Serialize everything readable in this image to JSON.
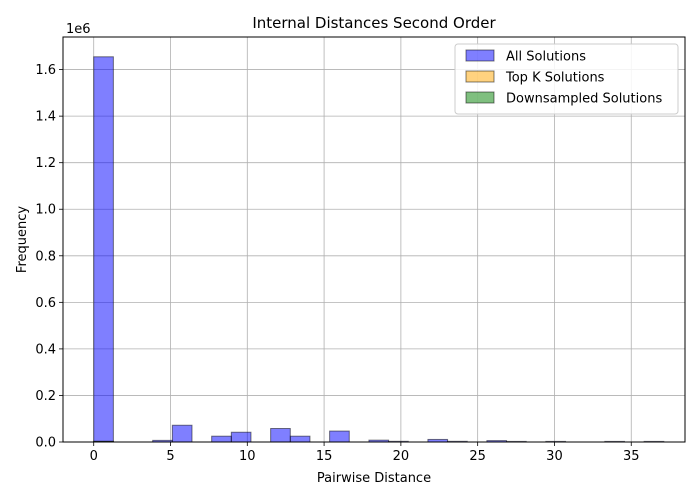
{
  "chart_data": {
    "type": "bar",
    "title": "Internal Distances Second Order",
    "xlabel": "Pairwise Distance",
    "ylabel": "Frequency",
    "y_offset_text": "1e6",
    "xlim": [
      -2,
      38.5
    ],
    "ylim": [
      0,
      1740000
    ],
    "x_ticks": [
      0,
      5,
      10,
      15,
      20,
      25,
      30,
      35
    ],
    "y_ticks": [
      0,
      200000,
      400000,
      600000,
      800000,
      1000000,
      1200000,
      1400000,
      1600000
    ],
    "y_tick_labels": [
      "0.0",
      "0.2",
      "0.4",
      "0.6",
      "0.8",
      "1.0",
      "1.2",
      "1.4",
      "1.6"
    ],
    "grid": true,
    "legend_position": "top-right",
    "series": [
      {
        "name": "All Solutions",
        "color": "#0000ff",
        "bins": [
          {
            "x0": 0.0,
            "x1": 1.28,
            "value": 1655000
          },
          {
            "x0": 3.84,
            "x1": 5.12,
            "value": 7000
          },
          {
            "x0": 5.12,
            "x1": 6.4,
            "value": 72000
          },
          {
            "x0": 7.68,
            "x1": 8.96,
            "value": 25000
          },
          {
            "x0": 8.96,
            "x1": 10.24,
            "value": 42000
          },
          {
            "x0": 11.52,
            "x1": 12.8,
            "value": 58000
          },
          {
            "x0": 12.8,
            "x1": 14.08,
            "value": 25000
          },
          {
            "x0": 15.36,
            "x1": 16.64,
            "value": 47000
          },
          {
            "x0": 17.92,
            "x1": 19.2,
            "value": 8000
          },
          {
            "x0": 19.2,
            "x1": 20.48,
            "value": 3000
          },
          {
            "x0": 21.76,
            "x1": 23.04,
            "value": 11000
          },
          {
            "x0": 23.04,
            "x1": 24.32,
            "value": 3000
          },
          {
            "x0": 25.6,
            "x1": 26.88,
            "value": 6000
          },
          {
            "x0": 26.88,
            "x1": 28.16,
            "value": 2000
          },
          {
            "x0": 29.44,
            "x1": 30.72,
            "value": 2000
          },
          {
            "x0": 33.28,
            "x1": 34.56,
            "value": 500
          },
          {
            "x0": 35.84,
            "x1": 37.12,
            "value": 500
          }
        ]
      },
      {
        "name": "Top K Solutions",
        "color": "#ffa500",
        "bins": [
          {
            "x0": 0.0,
            "x1": 1.28,
            "value": 2000
          }
        ]
      },
      {
        "name": "Downsampled Solutions",
        "color": "#008000",
        "bins": [
          {
            "x0": 0.0,
            "x1": 1.28,
            "value": 3000
          }
        ]
      }
    ]
  }
}
